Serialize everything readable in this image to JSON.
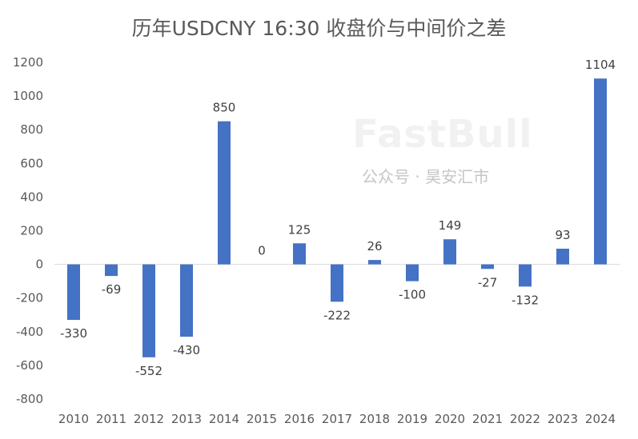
{
  "chart_data": {
    "type": "bar",
    "title": "历年USDCNY 16:30 收盘价与中间价之差",
    "categories": [
      "2010",
      "2011",
      "2012",
      "2013",
      "2014",
      "2015",
      "2016",
      "2017",
      "2018",
      "2019",
      "2020",
      "2021",
      "2022",
      "2023",
      "2024"
    ],
    "values": [
      -330,
      -69,
      -552,
      -430,
      850,
      0,
      125,
      -222,
      26,
      -100,
      149,
      -27,
      -132,
      93,
      1104
    ],
    "ylim": [
      -800,
      1200
    ],
    "yticks": [
      -800,
      -600,
      -400,
      -200,
      0,
      200,
      400,
      600,
      800,
      1000,
      1200
    ],
    "grid": false,
    "legend": "none",
    "bar_color": "#4472C4",
    "data_labels": true
  },
  "watermark": {
    "logo": "FastBull",
    "text": "公众号 · 昊安汇市"
  }
}
